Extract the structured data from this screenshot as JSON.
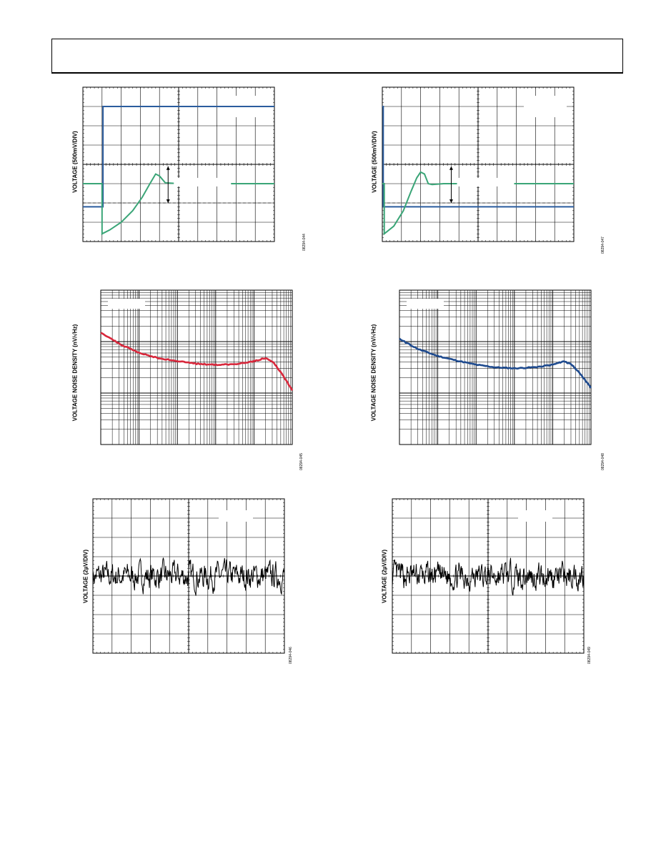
{
  "page": {
    "header": ""
  },
  "colors": {
    "blue": "#2b5c9e",
    "green": "#3aa577",
    "red": "#d8283c",
    "navy": "#1f4b8f",
    "black": "#000000"
  },
  "chart_data": [
    {
      "type": "line",
      "title": "",
      "ylabel": "VOLTAGE (500mV/DIV)",
      "figure_id": "08294-044",
      "grid": true,
      "divisions": {
        "x": 10,
        "y": 8
      },
      "series": [
        {
          "color": "blue",
          "points": [
            [
              0,
              1.8
            ],
            [
              1.05,
              1.8
            ],
            [
              1.05,
              7.0
            ],
            [
              10,
              7.0
            ]
          ]
        },
        {
          "color": "green",
          "points": [
            [
              0,
              3.0
            ],
            [
              1.0,
              3.0
            ],
            [
              1.0,
              0.4
            ],
            [
              1.4,
              0.6
            ],
            [
              2.0,
              1.0
            ],
            [
              2.6,
              1.6
            ],
            [
              3.1,
              2.3
            ],
            [
              3.5,
              3.0
            ],
            [
              3.8,
              3.5
            ],
            [
              4.0,
              3.4
            ],
            [
              4.3,
              3.05
            ],
            [
              5.0,
              3.0
            ],
            [
              10,
              3.0
            ]
          ]
        }
      ],
      "annotation": "arrow"
    },
    {
      "type": "line",
      "title": "",
      "ylabel": "VOLTAGE (500mV/DIV)",
      "figure_id": "08294-047",
      "grid": true,
      "divisions": {
        "x": 10,
        "y": 8
      },
      "series": [
        {
          "color": "blue",
          "points": [
            [
              0,
              7.0
            ],
            [
              0.05,
              7.0
            ],
            [
              0.05,
              1.8
            ],
            [
              10,
              1.8
            ]
          ]
        },
        {
          "color": "green",
          "points": [
            [
              0,
              3.0
            ],
            [
              0.1,
              3.0
            ],
            [
              0.1,
              0.4
            ],
            [
              0.6,
              0.8
            ],
            [
              1.1,
              1.6
            ],
            [
              1.5,
              2.6
            ],
            [
              1.8,
              3.3
            ],
            [
              2.0,
              3.6
            ],
            [
              2.2,
              3.5
            ],
            [
              2.4,
              3.0
            ],
            [
              2.6,
              2.95
            ],
            [
              3.2,
              3.0
            ],
            [
              10,
              3.0
            ]
          ]
        }
      ],
      "annotation": "arrow"
    },
    {
      "type": "line",
      "title": "",
      "ylabel": "VOLTAGE NOISE DENSITY (nV/√Hz)",
      "figure_id": "08294-045",
      "log_x_decades": 5,
      "log_y_decades": 3,
      "series": [
        {
          "color": "red",
          "points": [
            [
              0,
              2.18
            ],
            [
              0.5,
              1.95
            ],
            [
              1,
              1.78
            ],
            [
              1.5,
              1.68
            ],
            [
              2,
              1.62
            ],
            [
              2.5,
              1.57
            ],
            [
              3,
              1.55
            ],
            [
              3.5,
              1.56
            ],
            [
              4,
              1.62
            ],
            [
              4.3,
              1.68
            ],
            [
              4.5,
              1.6
            ],
            [
              4.75,
              1.35
            ],
            [
              5,
              1.05
            ]
          ]
        }
      ]
    },
    {
      "type": "line",
      "title": "",
      "ylabel": "VOLTAGE NOISE DENSITY (nV/√Hz)",
      "figure_id": "08294-048",
      "log_x_decades": 5,
      "log_y_decades": 3,
      "series": [
        {
          "color": "navy",
          "points": [
            [
              0,
              2.05
            ],
            [
              0.5,
              1.85
            ],
            [
              1,
              1.72
            ],
            [
              1.5,
              1.63
            ],
            [
              2,
              1.55
            ],
            [
              2.5,
              1.5
            ],
            [
              3,
              1.48
            ],
            [
              3.5,
              1.5
            ],
            [
              4,
              1.55
            ],
            [
              4.3,
              1.62
            ],
            [
              4.5,
              1.55
            ],
            [
              4.75,
              1.35
            ],
            [
              5,
              1.1
            ]
          ]
        }
      ]
    },
    {
      "type": "line",
      "title": "",
      "ylabel": "VOLTAGE (2µV/DIV)",
      "figure_id": "08294-046",
      "grid": true,
      "divisions": {
        "x": 10,
        "y": 8
      },
      "noise": {
        "seed": 7,
        "center": 4.0,
        "amplitude": 0.9
      }
    },
    {
      "type": "line",
      "title": "",
      "ylabel": "VOLTAGE (2µV/DIV)",
      "figure_id": "08294-049",
      "grid": true,
      "divisions": {
        "x": 10,
        "y": 8
      },
      "noise": {
        "seed": 13,
        "center": 4.0,
        "amplitude": 0.9
      }
    }
  ]
}
